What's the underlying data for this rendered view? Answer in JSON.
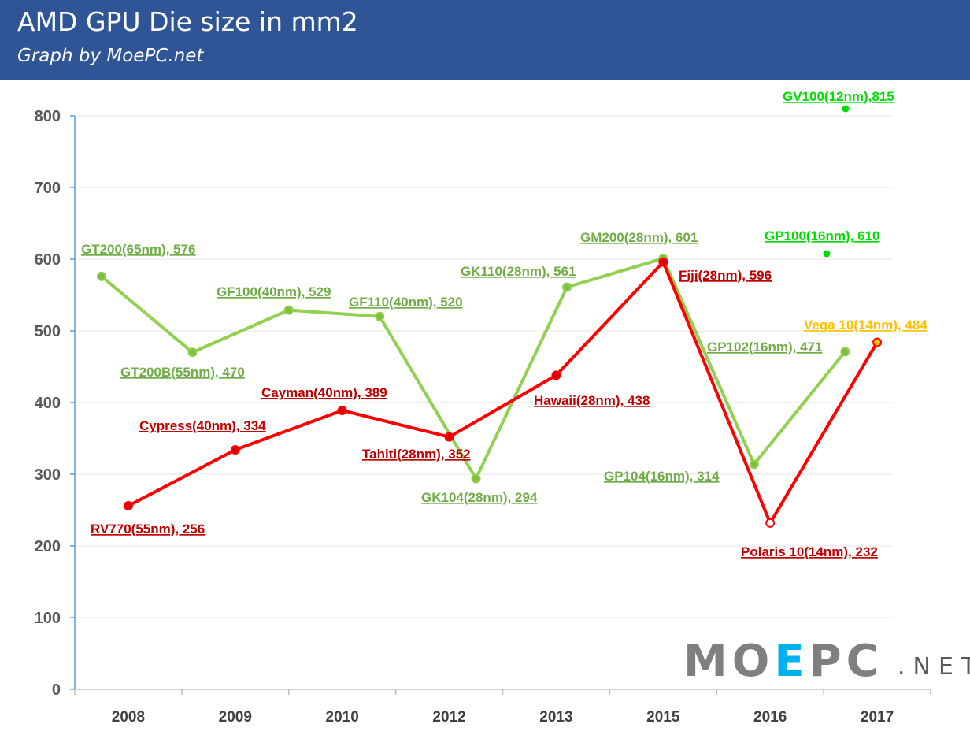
{
  "header": {
    "title": "AMD GPU Die size in mm2",
    "subtitle": "Graph by MoePC.net"
  },
  "watermark": {
    "main_a": "MO",
    "main_b": "E",
    "main_c": "PC",
    "suffix": ".NET"
  },
  "colors": {
    "green": "#92d050",
    "red": "#ff0000",
    "bright_green": "#00dd00",
    "orange": "#ffc000",
    "label_red": "#c00000",
    "label_green": "#70ad47"
  },
  "chart_data": {
    "type": "line",
    "ylim": [
      0,
      800
    ],
    "yticks": [
      "0",
      "100",
      "200",
      "300",
      "400",
      "500",
      "600",
      "700",
      "800"
    ],
    "categories": [
      "2008",
      "2009",
      "2010",
      "2012",
      "2013",
      "2015",
      "2016",
      "2017"
    ],
    "series": [
      {
        "color": "#92d050",
        "points": [
          {
            "x": 0.25,
            "y": 576,
            "label": "GT200(65nm), 576"
          },
          {
            "x": 1.1,
            "y": 470,
            "label": "GT200B(55nm), 470"
          },
          {
            "x": 2.0,
            "y": 529,
            "label": "GF100(40nm), 529"
          },
          {
            "x": 2.85,
            "y": 520,
            "label": "GF110(40nm), 520"
          },
          {
            "x": 3.75,
            "y": 294,
            "label": "GK104(28nm), 294"
          },
          {
            "x": 4.6,
            "y": 561,
            "label": "GK110(28nm), 561"
          },
          {
            "x": 5.5,
            "y": 601,
            "label": "GM200(28nm), 601"
          },
          {
            "x": 6.35,
            "y": 314,
            "label": "GP104(16nm), 314"
          },
          {
            "x": 7.2,
            "y": 471,
            "label": "GP102(16nm), 471"
          }
        ]
      },
      {
        "color": "#ff0000",
        "points": [
          {
            "x": 0.5,
            "y": 256,
            "label": "RV770(55nm), 256"
          },
          {
            "x": 1.5,
            "y": 334,
            "label": "Cypress(40nm), 334"
          },
          {
            "x": 2.5,
            "y": 389,
            "label": "Cayman(40nm), 389"
          },
          {
            "x": 3.5,
            "y": 352,
            "label": "Tahiti(28nm), 352"
          },
          {
            "x": 4.5,
            "y": 438,
            "label": "Hawaii(28nm), 438"
          },
          {
            "x": 5.5,
            "y": 596,
            "label": "Fiji(28nm), 596"
          },
          {
            "x": 6.5,
            "y": 232,
            "label": "Polaris 10(14nm), 232"
          },
          {
            "x": 7.5,
            "y": 484,
            "label": "Vega 10(14nm), 484"
          }
        ]
      }
    ],
    "standalone": [
      {
        "x": 7.0,
        "y": 610,
        "label": "GP100(16nm), 610",
        "color": "#00dd00"
      },
      {
        "x": 7.2,
        "y": 815,
        "label": "GV100(12nm),815",
        "color": "#00dd00"
      }
    ]
  }
}
